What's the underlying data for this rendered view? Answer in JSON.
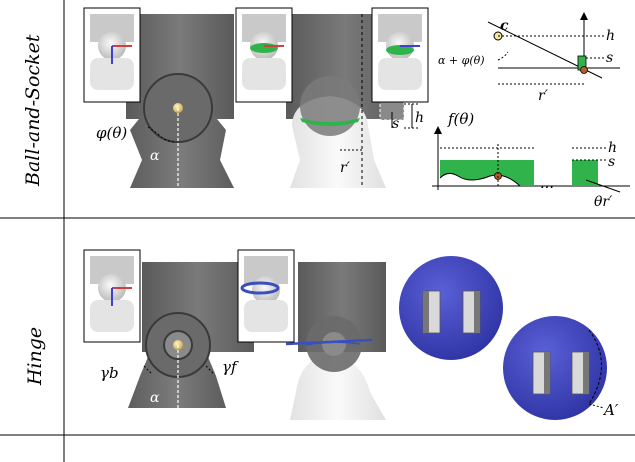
{
  "rows": [
    {
      "label": "Ball-and-Socket"
    },
    {
      "label": "Hinge"
    }
  ],
  "ball_socket": {
    "phi_label": "φ(θ)",
    "alpha_label": "α",
    "h_label": "h",
    "s_label": "s",
    "r_label": "r′",
    "diagram_top": {
      "c_label": "c",
      "h_label": "h",
      "s_label": "s",
      "angle_label": "α + φ(θ)",
      "r_label": "r′"
    },
    "diagram_bottom": {
      "f_label": "f(θ)",
      "h_label": "h",
      "s_label": "s",
      "axis_label": "θr′",
      "ellipsis": "…"
    },
    "colors": {
      "shell": "#6e6e6e",
      "fill": "#2fb34a",
      "ball": "#e8c25a"
    }
  },
  "hinge": {
    "gamma_b": "γb",
    "gamma_f": "γf",
    "alpha_label": "α",
    "a_label": "A′",
    "colors": {
      "disk": "#3a3fb8",
      "ring": "#3a4fbf"
    }
  }
}
